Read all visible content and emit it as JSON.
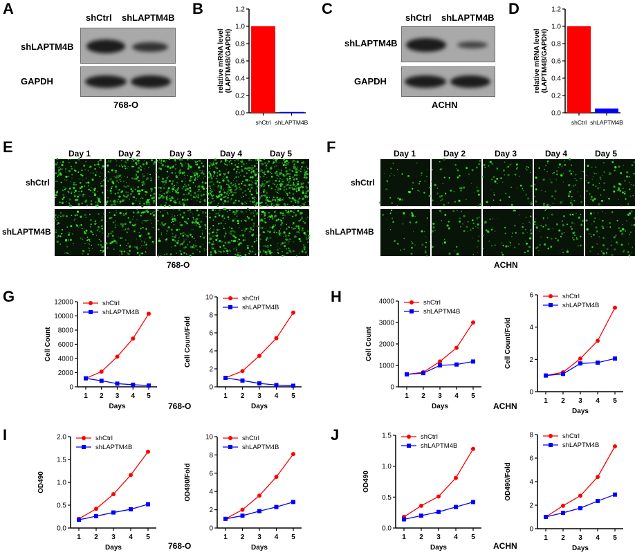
{
  "panels": [
    "A",
    "B",
    "C",
    "D",
    "E",
    "F",
    "G",
    "H",
    "I",
    "J"
  ],
  "blots": [
    {
      "id": "A",
      "lanes": [
        "shCtrl",
        "shLAPTM4B"
      ],
      "rows": [
        "shLAPTM4B",
        "GAPDH"
      ],
      "cell_line": "768-O"
    },
    {
      "id": "C",
      "lanes": [
        "shCtrl",
        "shLAPTM4B"
      ],
      "rows": [
        "shLAPTM4B",
        "GAPDH"
      ],
      "cell_line": "ACHN"
    }
  ],
  "microscopy": [
    {
      "id": "E",
      "days": [
        "Day 1",
        "Day 2",
        "Day 3",
        "Day 4",
        "Day 5"
      ],
      "rows": [
        "shCtrl",
        "shLAPTM4B"
      ],
      "cell_line": "768-O"
    },
    {
      "id": "F",
      "days": [
        "Day 1",
        "Day 2",
        "Day 3",
        "Day 4",
        "Day 5"
      ],
      "rows": [
        "shCtrl",
        "shLAPTM4B"
      ],
      "cell_line": "ACHN"
    }
  ],
  "group_captions": {
    "G": "768-O",
    "H": "ACHN",
    "I": "768-O",
    "J": "ACHN"
  },
  "chart_data": [
    {
      "panel": "B",
      "type": "bar",
      "categories": [
        "shCtrl",
        "shLAPTM4B"
      ],
      "values": [
        1.0,
        0.01
      ],
      "colors": [
        "#ff0000",
        "#0000ff"
      ],
      "ylabel": "relative mRNA level (LAPTM4B/GAPDH)",
      "ylim": [
        0,
        1.2
      ],
      "yticks": [
        "0.0",
        "0.2",
        "0.4",
        "0.6",
        "0.8",
        "1.0",
        "1.2"
      ]
    },
    {
      "panel": "D",
      "type": "bar",
      "categories": [
        "shCtrl",
        "shLAPTM4B"
      ],
      "values": [
        1.0,
        0.05
      ],
      "colors": [
        "#ff0000",
        "#0000ff"
      ],
      "ylabel": "relative mRNA level (LAPTM4B/GAPDH)",
      "ylim": [
        0,
        1.2
      ],
      "yticks": [
        "0.0",
        "0.2",
        "0.4",
        "0.6",
        "0.8",
        "1.0",
        "1.2"
      ]
    },
    {
      "panel": "G1",
      "type": "line",
      "x": [
        1,
        2,
        3,
        4,
        5
      ],
      "xticks": [
        "1",
        "2",
        "3",
        "4",
        "5"
      ],
      "xlabel": "Days",
      "ylabel": "Cell Count",
      "ylim": [
        0,
        12000
      ],
      "yticks": [
        "0",
        "2000",
        "4000",
        "6000",
        "8000",
        "10000",
        "12000"
      ],
      "series": [
        {
          "name": "shCtrl",
          "values": [
            1200,
            2150,
            4250,
            6800,
            10300
          ],
          "color": "#ff0000",
          "marker": "circle"
        },
        {
          "name": "shLAPTM4B",
          "values": [
            1200,
            850,
            450,
            300,
            180
          ],
          "color": "#0000ff",
          "marker": "square"
        }
      ]
    },
    {
      "panel": "G2",
      "type": "line",
      "x": [
        1,
        2,
        3,
        4,
        5
      ],
      "xticks": [
        "1",
        "2",
        "3",
        "4",
        "5"
      ],
      "xlabel": "Days",
      "ylabel": "Cell Count/Fold",
      "ylim": [
        0,
        10
      ],
      "yticks": [
        "0",
        "2",
        "4",
        "6",
        "8",
        "10"
      ],
      "series": [
        {
          "name": "shCtrl",
          "values": [
            1.0,
            1.75,
            3.45,
            5.4,
            8.25
          ],
          "color": "#ff0000",
          "marker": "circle"
        },
        {
          "name": "shLAPTM4B",
          "values": [
            1.0,
            0.7,
            0.38,
            0.2,
            0.12
          ],
          "color": "#0000ff",
          "marker": "square"
        }
      ]
    },
    {
      "panel": "H1",
      "type": "line",
      "x": [
        1,
        2,
        3,
        4,
        5
      ],
      "xticks": [
        "1",
        "2",
        "3",
        "4",
        "5"
      ],
      "xlabel": "Days",
      "ylabel": "Cell Count",
      "ylim": [
        0,
        4000
      ],
      "yticks": [
        "0",
        "1000",
        "2000",
        "3000",
        "4000"
      ],
      "series": [
        {
          "name": "shCtrl",
          "values": [
            580,
            680,
            1180,
            1820,
            3000
          ],
          "color": "#ff0000",
          "marker": "circle"
        },
        {
          "name": "shLAPTM4B",
          "values": [
            580,
            640,
            1000,
            1040,
            1180
          ],
          "color": "#0000ff",
          "marker": "square"
        }
      ]
    },
    {
      "panel": "H2",
      "type": "line",
      "x": [
        1,
        2,
        3,
        4,
        5
      ],
      "xticks": [
        "1",
        "2",
        "3",
        "4",
        "5"
      ],
      "xlabel": "Days",
      "ylabel": "Cell Count/Fold",
      "ylim": [
        0,
        6
      ],
      "yticks": [
        "0",
        "2",
        "4",
        "6"
      ],
      "series": [
        {
          "name": "shCtrl",
          "values": [
            1.0,
            1.2,
            2.05,
            3.15,
            5.2
          ],
          "color": "#ff0000",
          "marker": "circle"
        },
        {
          "name": "shLAPTM4B",
          "values": [
            1.0,
            1.1,
            1.75,
            1.8,
            2.05
          ],
          "color": "#0000ff",
          "marker": "square"
        }
      ]
    },
    {
      "panel": "I1",
      "type": "line",
      "x": [
        1,
        2,
        3,
        4,
        5
      ],
      "xticks": [
        "1",
        "2",
        "3",
        "4",
        "5"
      ],
      "xlabel": "Days",
      "ylabel": "OD490",
      "ylim": [
        0,
        2.0
      ],
      "yticks": [
        "0.0",
        "0.5",
        "1.0",
        "1.5",
        "2.0"
      ],
      "series": [
        {
          "name": "shCtrl",
          "values": [
            0.2,
            0.42,
            0.74,
            1.16,
            1.67
          ],
          "color": "#ff0000",
          "marker": "circle"
        },
        {
          "name": "shLAPTM4B",
          "values": [
            0.18,
            0.26,
            0.34,
            0.41,
            0.52
          ],
          "color": "#0000ff",
          "marker": "square"
        }
      ]
    },
    {
      "panel": "I2",
      "type": "line",
      "x": [
        1,
        2,
        3,
        4,
        5
      ],
      "xticks": [
        "1",
        "2",
        "3",
        "4",
        "5"
      ],
      "xlabel": "Days",
      "ylabel": "OD490/Fold",
      "ylim": [
        0,
        10
      ],
      "yticks": [
        "0",
        "2",
        "4",
        "6",
        "8",
        "10"
      ],
      "series": [
        {
          "name": "shCtrl",
          "values": [
            1.0,
            2.0,
            3.55,
            5.6,
            8.1
          ],
          "color": "#ff0000",
          "marker": "circle"
        },
        {
          "name": "shLAPTM4B",
          "values": [
            1.0,
            1.35,
            1.85,
            2.3,
            2.85
          ],
          "color": "#0000ff",
          "marker": "square"
        }
      ]
    },
    {
      "panel": "J1",
      "type": "line",
      "x": [
        1,
        2,
        3,
        4,
        5
      ],
      "xticks": [
        "1",
        "2",
        "3",
        "4",
        "5"
      ],
      "xlabel": "Days",
      "ylabel": "OD490",
      "ylim": [
        0,
        1.5
      ],
      "yticks": [
        "0.0",
        "0.5",
        "1.0",
        "1.5"
      ],
      "series": [
        {
          "name": "shCtrl",
          "values": [
            0.18,
            0.36,
            0.51,
            0.81,
            1.28
          ],
          "color": "#ff0000",
          "marker": "circle"
        },
        {
          "name": "shLAPTM4B",
          "values": [
            0.14,
            0.2,
            0.26,
            0.34,
            0.42
          ],
          "color": "#0000ff",
          "marker": "square"
        }
      ]
    },
    {
      "panel": "J2",
      "type": "line",
      "x": [
        1,
        2,
        3,
        4,
        5
      ],
      "xticks": [
        "1",
        "2",
        "3",
        "4",
        "5"
      ],
      "xlabel": "Days",
      "ylabel": "OD490/Fold",
      "ylim": [
        0,
        8
      ],
      "yticks": [
        "0",
        "2",
        "4",
        "6",
        "8"
      ],
      "series": [
        {
          "name": "shCtrl",
          "values": [
            1.0,
            1.95,
            2.8,
            4.4,
            7.0
          ],
          "color": "#ff0000",
          "marker": "circle"
        },
        {
          "name": "shLAPTM4B",
          "values": [
            1.0,
            1.35,
            1.75,
            2.35,
            2.9
          ],
          "color": "#0000ff",
          "marker": "square"
        }
      ]
    }
  ]
}
